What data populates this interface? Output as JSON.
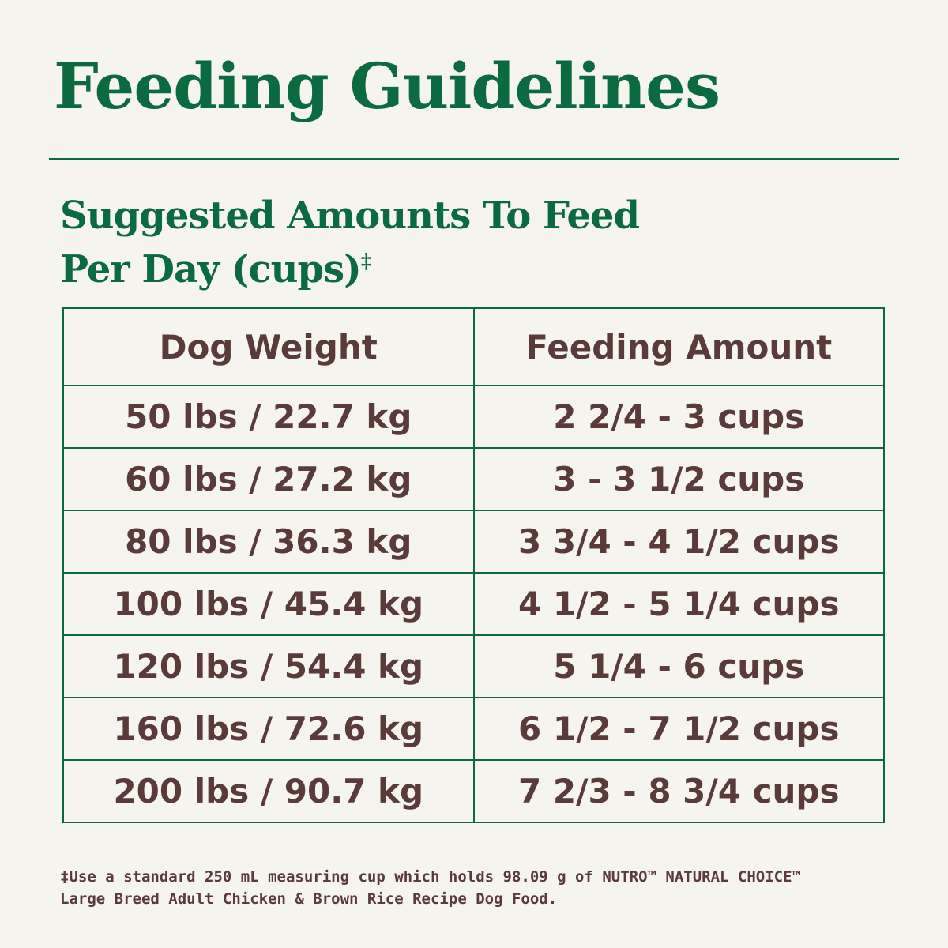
{
  "header": {
    "title": "Feeding Guidelines",
    "subtitle_line1": "Suggested Amounts To Feed",
    "subtitle_line2": "Per Day (cups)",
    "subtitle_mark": "‡"
  },
  "table": {
    "headers": [
      "Dog Weight",
      "Feeding Amount"
    ],
    "rows": [
      [
        "50 lbs / 22.7 kg",
        "2 2/4 - 3 cups"
      ],
      [
        "60 lbs / 27.2 kg",
        "3 - 3 1/2 cups"
      ],
      [
        "80 lbs / 36.3 kg",
        "3 3/4 - 4 1/2 cups"
      ],
      [
        "100 lbs / 45.4 kg",
        "4 1/2 - 5 1/4 cups"
      ],
      [
        "120 lbs / 54.4 kg",
        "5 1/4 - 6 cups"
      ],
      [
        "160 lbs / 72.6 kg",
        "6 1/2 - 7 1/2 cups"
      ],
      [
        "200 lbs / 90.7 kg",
        "7 2/3 - 8 3/4 cups"
      ]
    ]
  },
  "footnote": {
    "line1": "‡Use a standard 250 mL measuring cup which holds 98.09 g of NUTRO™ NATURAL CHOICE™",
    "line2": "Large Breed Adult Chicken & Brown Rice Recipe Dog Food."
  }
}
